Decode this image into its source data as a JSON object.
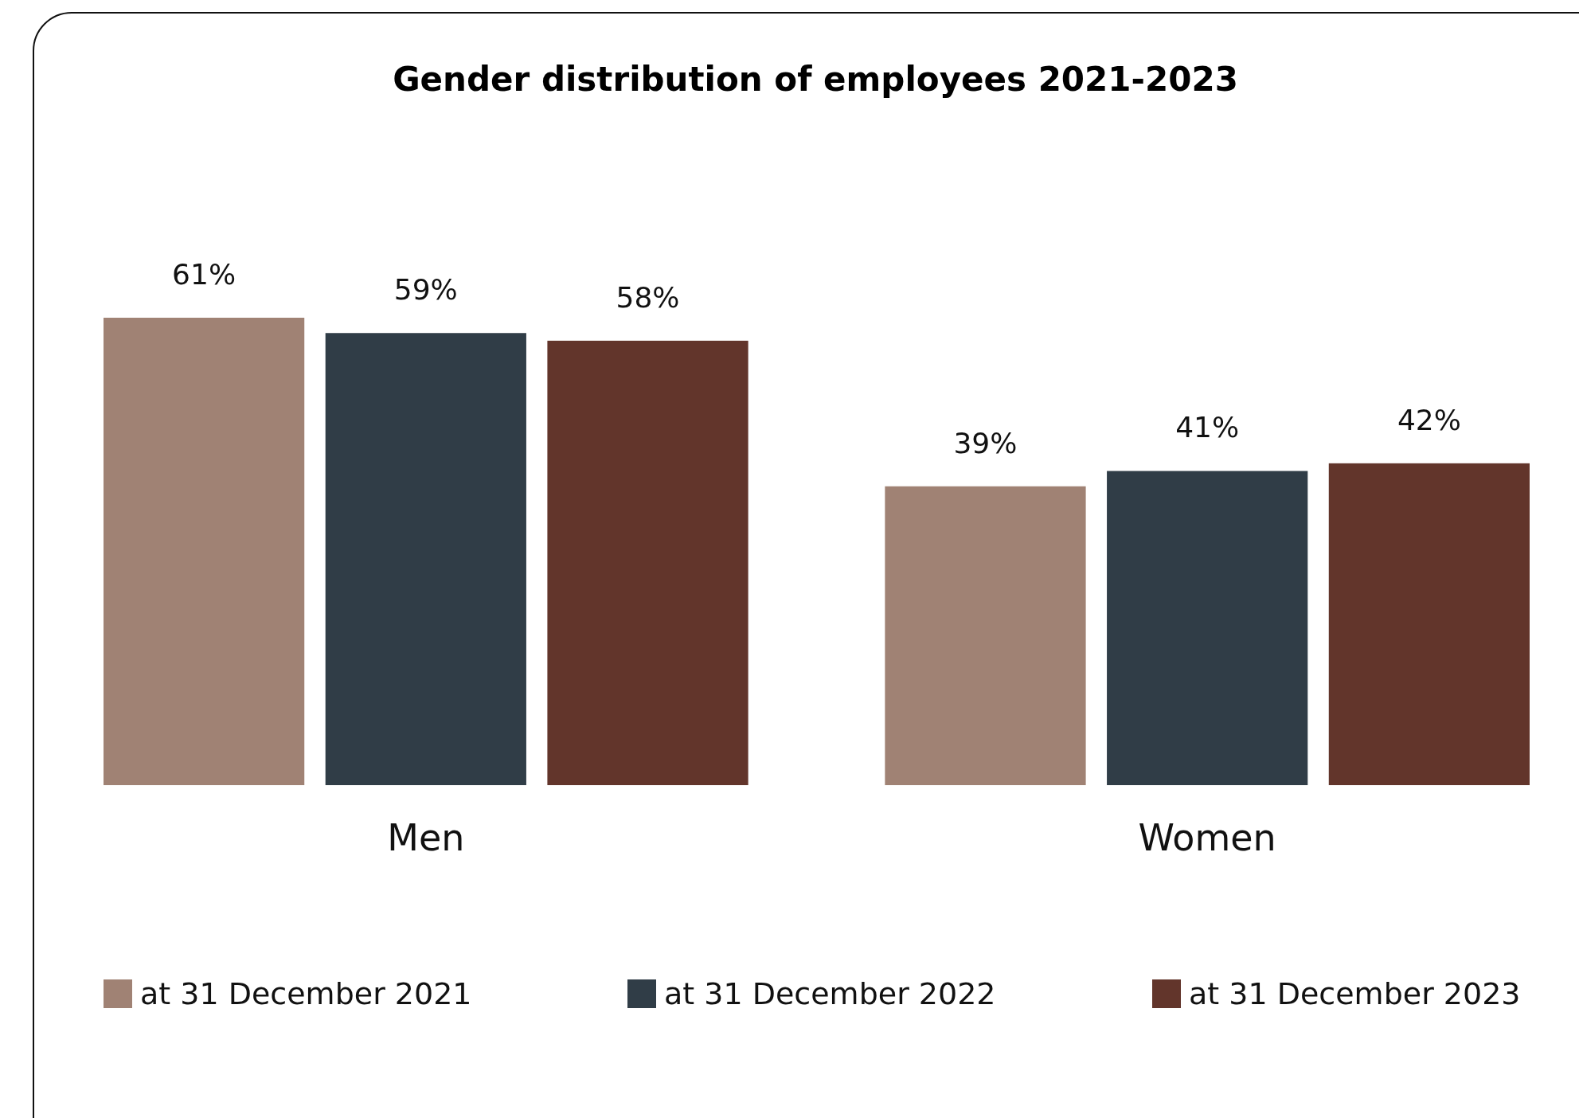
{
  "chart_data": {
    "type": "bar",
    "title": "Gender distribution of employees 2021-2023",
    "categories": [
      "Men",
      "Women"
    ],
    "series": [
      {
        "name": "at 31 December 2021",
        "color": "#a08274",
        "values": [
          61,
          39
        ],
        "value_labels": [
          "61%",
          "39%"
        ]
      },
      {
        "name": "at 31 December 2022",
        "color": "#303d47",
        "values": [
          59,
          41
        ],
        "value_labels": [
          "59%",
          "41%"
        ]
      },
      {
        "name": "at 31 December 2023",
        "color": "#62352b",
        "values": [
          58,
          42
        ],
        "value_labels": [
          "58%",
          "42%"
        ]
      }
    ],
    "legend": "bottom",
    "tick_labels": "x"
  }
}
